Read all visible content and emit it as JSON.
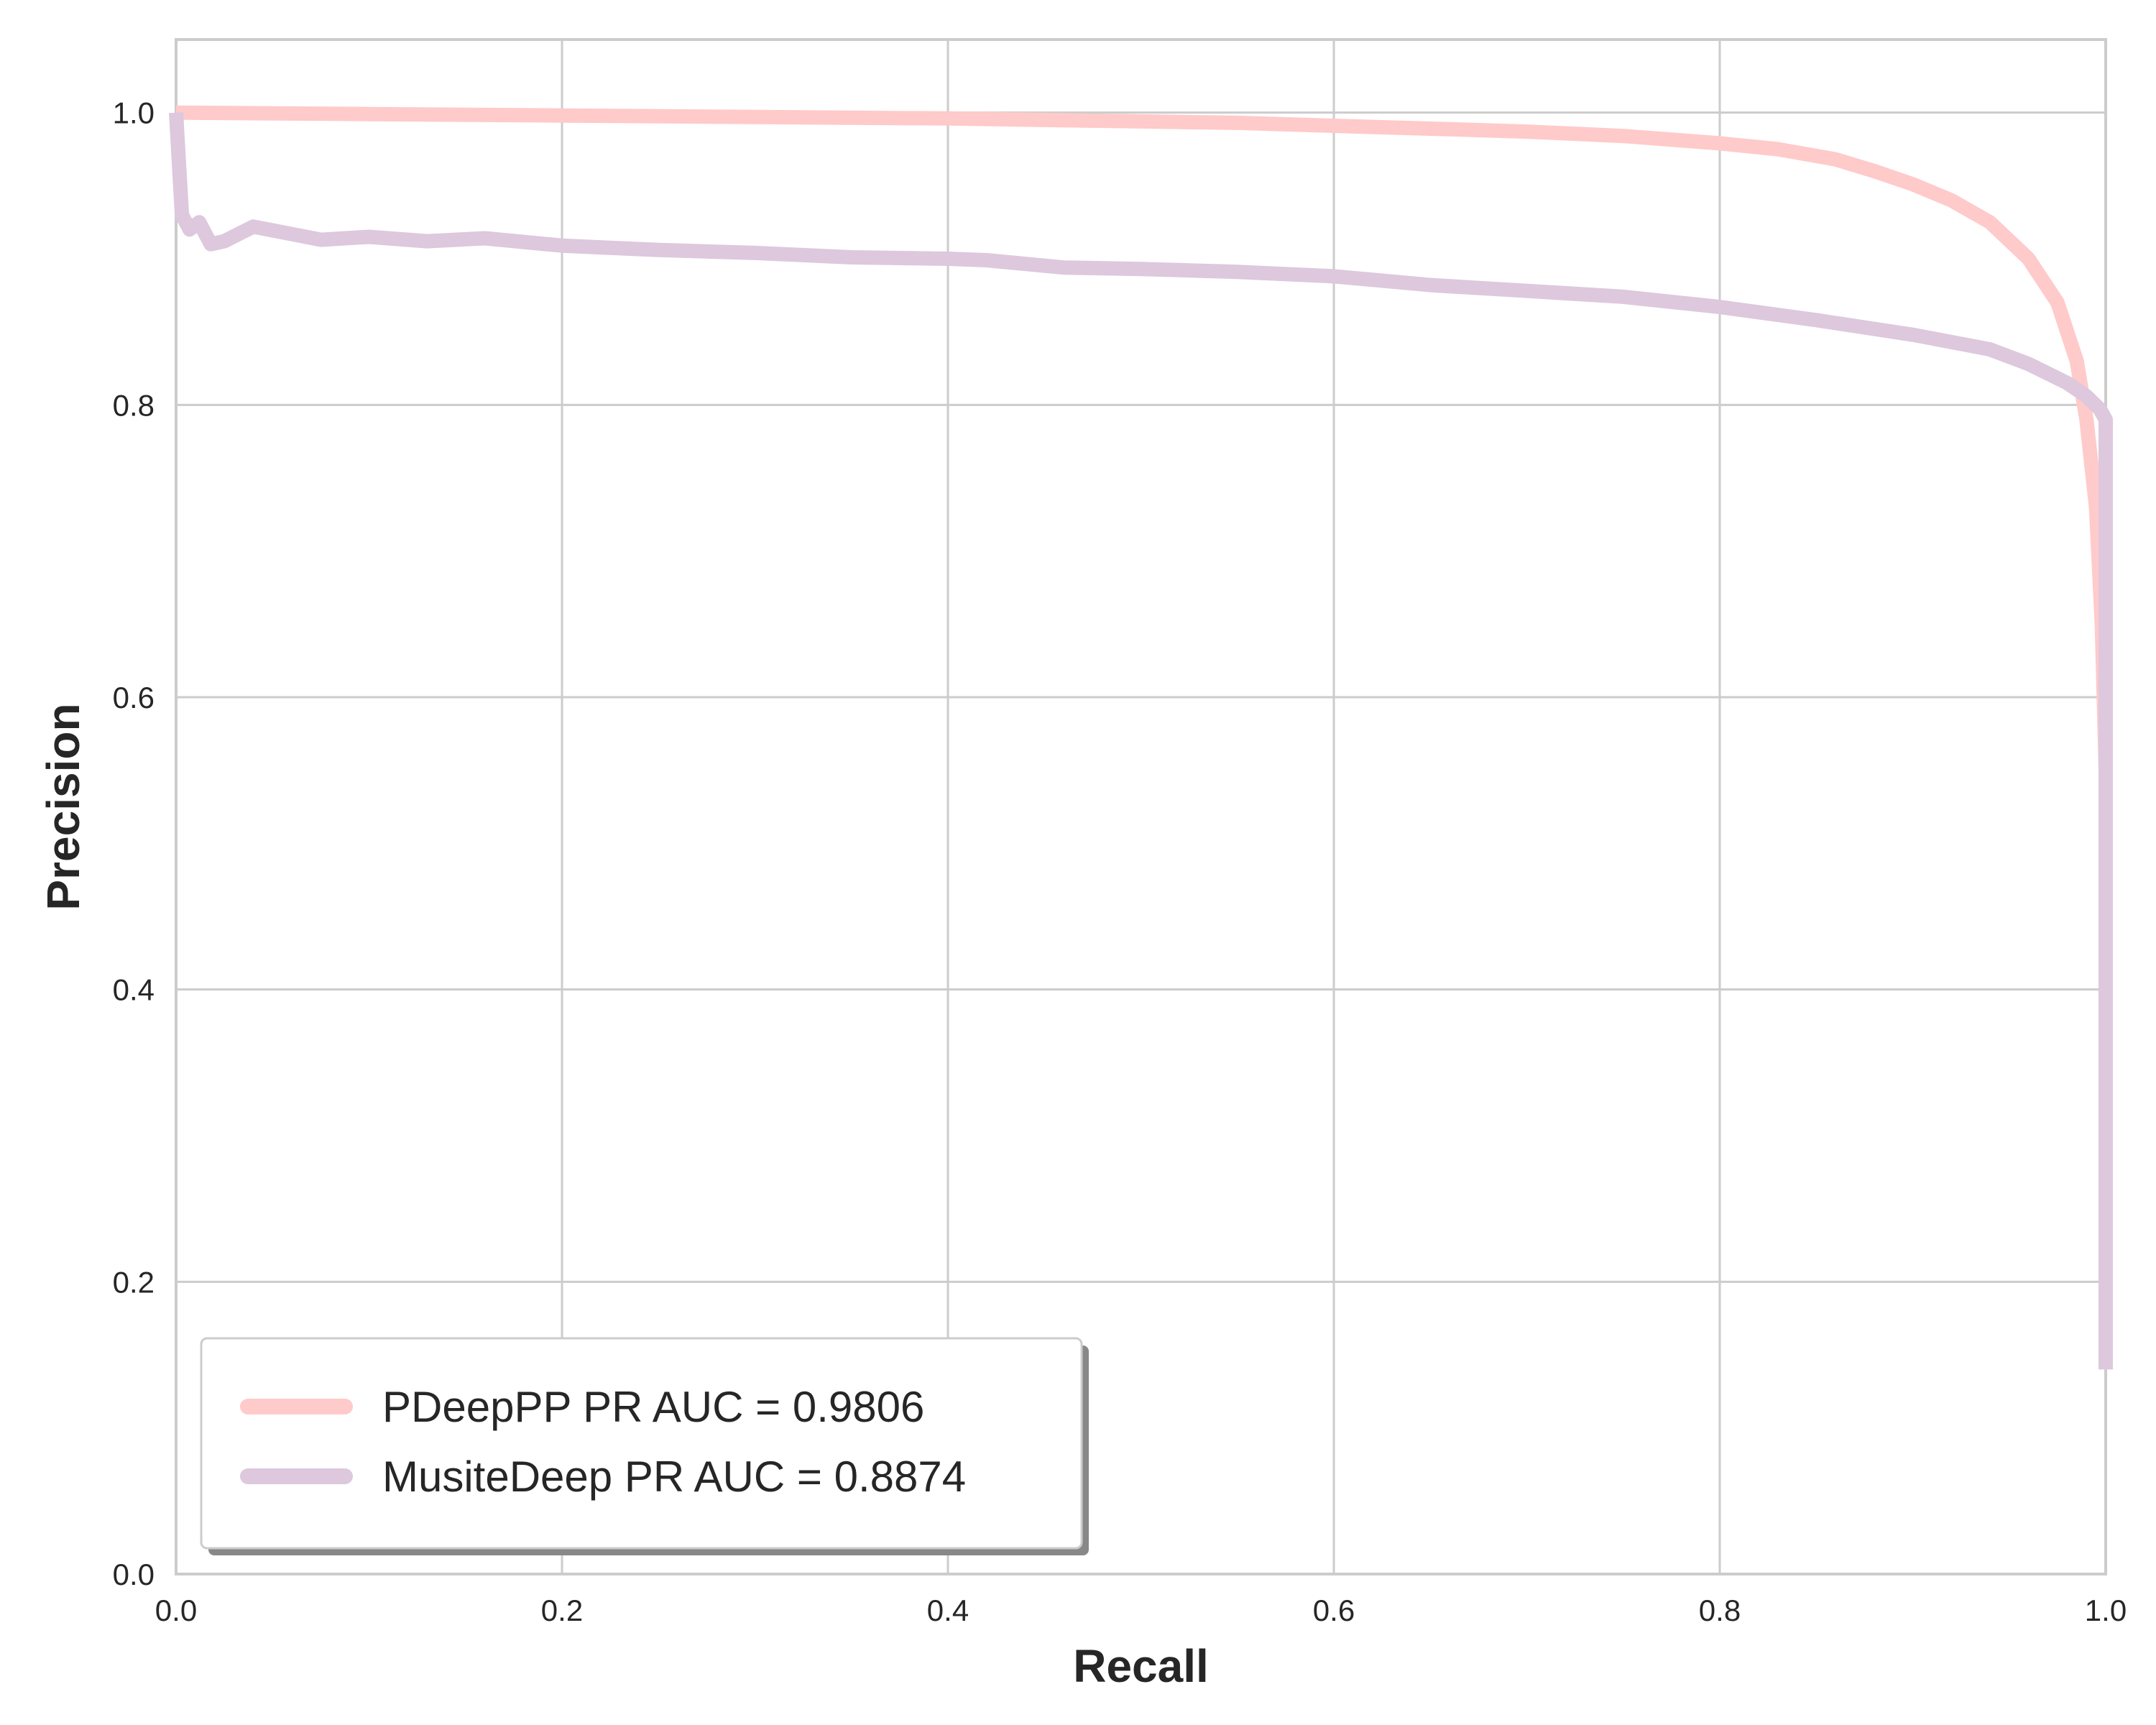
{
  "chart_data": {
    "type": "line",
    "xlabel": "Recall",
    "ylabel": "Precision",
    "xlim": [
      0.0,
      1.0
    ],
    "ylim": [
      0.0,
      1.05
    ],
    "grid": true,
    "legend_placement": "lower-left",
    "xticks": [
      "0.0",
      "0.2",
      "0.4",
      "0.6",
      "0.8",
      "1.0"
    ],
    "yticks": [
      "0.0",
      "0.2",
      "0.4",
      "0.6",
      "0.8",
      "1.0"
    ],
    "series": [
      {
        "name": "PDeepPP PR AUC = 0.9806",
        "color": "#ffcaca",
        "points": [
          [
            0.0,
            1.0
          ],
          [
            0.1,
            0.999
          ],
          [
            0.2,
            0.998
          ],
          [
            0.3,
            0.997
          ],
          [
            0.4,
            0.996
          ],
          [
            0.5,
            0.994
          ],
          [
            0.55,
            0.993
          ],
          [
            0.6,
            0.991
          ],
          [
            0.65,
            0.989
          ],
          [
            0.7,
            0.987
          ],
          [
            0.75,
            0.984
          ],
          [
            0.8,
            0.979
          ],
          [
            0.83,
            0.975
          ],
          [
            0.86,
            0.968
          ],
          [
            0.88,
            0.96
          ],
          [
            0.9,
            0.951
          ],
          [
            0.92,
            0.94
          ],
          [
            0.94,
            0.925
          ],
          [
            0.96,
            0.9
          ],
          [
            0.975,
            0.87
          ],
          [
            0.985,
            0.83
          ],
          [
            0.99,
            0.79
          ],
          [
            0.995,
            0.73
          ],
          [
            0.998,
            0.65
          ],
          [
            1.0,
            0.55
          ],
          [
            1.0,
            0.14
          ]
        ]
      },
      {
        "name": "MusiteDeep PR AUC = 0.8874",
        "color": "#ddc8dd",
        "points": [
          [
            0.0,
            1.0
          ],
          [
            0.003,
            0.93
          ],
          [
            0.007,
            0.92
          ],
          [
            0.012,
            0.925
          ],
          [
            0.018,
            0.91
          ],
          [
            0.025,
            0.912
          ],
          [
            0.04,
            0.922
          ],
          [
            0.075,
            0.913
          ],
          [
            0.1,
            0.915
          ],
          [
            0.13,
            0.912
          ],
          [
            0.16,
            0.914
          ],
          [
            0.2,
            0.909
          ],
          [
            0.25,
            0.906
          ],
          [
            0.3,
            0.904
          ],
          [
            0.35,
            0.901
          ],
          [
            0.4,
            0.9
          ],
          [
            0.42,
            0.899
          ],
          [
            0.46,
            0.894
          ],
          [
            0.5,
            0.893
          ],
          [
            0.55,
            0.891
          ],
          [
            0.6,
            0.888
          ],
          [
            0.65,
            0.882
          ],
          [
            0.7,
            0.878
          ],
          [
            0.75,
            0.874
          ],
          [
            0.8,
            0.867
          ],
          [
            0.85,
            0.858
          ],
          [
            0.9,
            0.848
          ],
          [
            0.94,
            0.838
          ],
          [
            0.96,
            0.828
          ],
          [
            0.98,
            0.815
          ],
          [
            0.99,
            0.806
          ],
          [
            0.997,
            0.797
          ],
          [
            1.0,
            0.79
          ],
          [
            1.0,
            0.14
          ]
        ]
      }
    ]
  }
}
